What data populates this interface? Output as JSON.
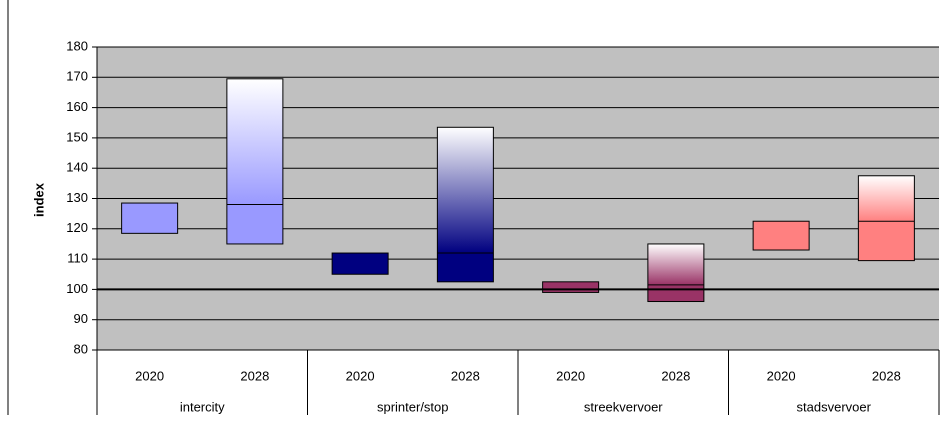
{
  "chart_data": {
    "type": "floating-bar",
    "ylabel": "index",
    "groups": [
      "intercity",
      "sprinter/stop",
      "streekvervoer",
      "stadsvervoer"
    ],
    "categories": [
      "2020",
      "2028",
      "2020",
      "2028",
      "2020",
      "2028",
      "2020",
      "2028"
    ],
    "low": [
      118.5,
      115,
      105,
      102.5,
      99,
      96,
      113,
      109.5
    ],
    "high": [
      128.5,
      169.5,
      112,
      153.5,
      102.5,
      115,
      122.5,
      137.5
    ],
    "mid": [
      null,
      128,
      null,
      112,
      null,
      101.5,
      null,
      122.5
    ],
    "colors": [
      "#9999ff",
      "#000080",
      "#993366",
      "#ff8080"
    ],
    "ylim": [
      80,
      180
    ],
    "yticks": [
      80,
      90,
      100,
      110,
      120,
      130,
      140,
      150,
      160,
      170,
      180
    ],
    "ref_line": 100,
    "grid": true
  }
}
